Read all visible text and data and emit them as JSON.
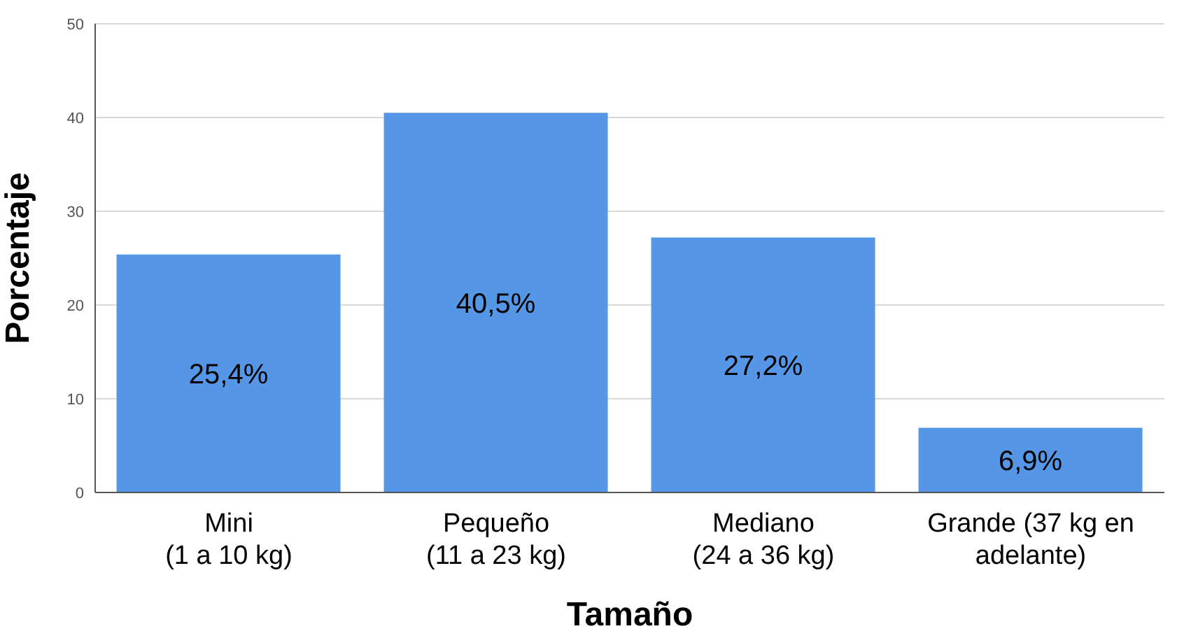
{
  "chart_data": {
    "type": "bar",
    "xlabel": "Tamaño",
    "ylabel": "Porcentaje",
    "categories": [
      "Mini\n(1 a 10 kg)",
      "Pequeño\n(11 a 23 kg)",
      "Mediano\n(24 a 36 kg)",
      "Grande (37 kg en\nadelante)"
    ],
    "values": [
      25.4,
      40.5,
      27.2,
      6.9
    ],
    "value_labels": [
      "25,4%",
      "40,5%",
      "27,2%",
      "6,9%"
    ],
    "color": "#5596e6",
    "ylim": [
      0,
      50
    ],
    "yticks": [
      0,
      10,
      20,
      30,
      40,
      50
    ],
    "grid": "y"
  }
}
